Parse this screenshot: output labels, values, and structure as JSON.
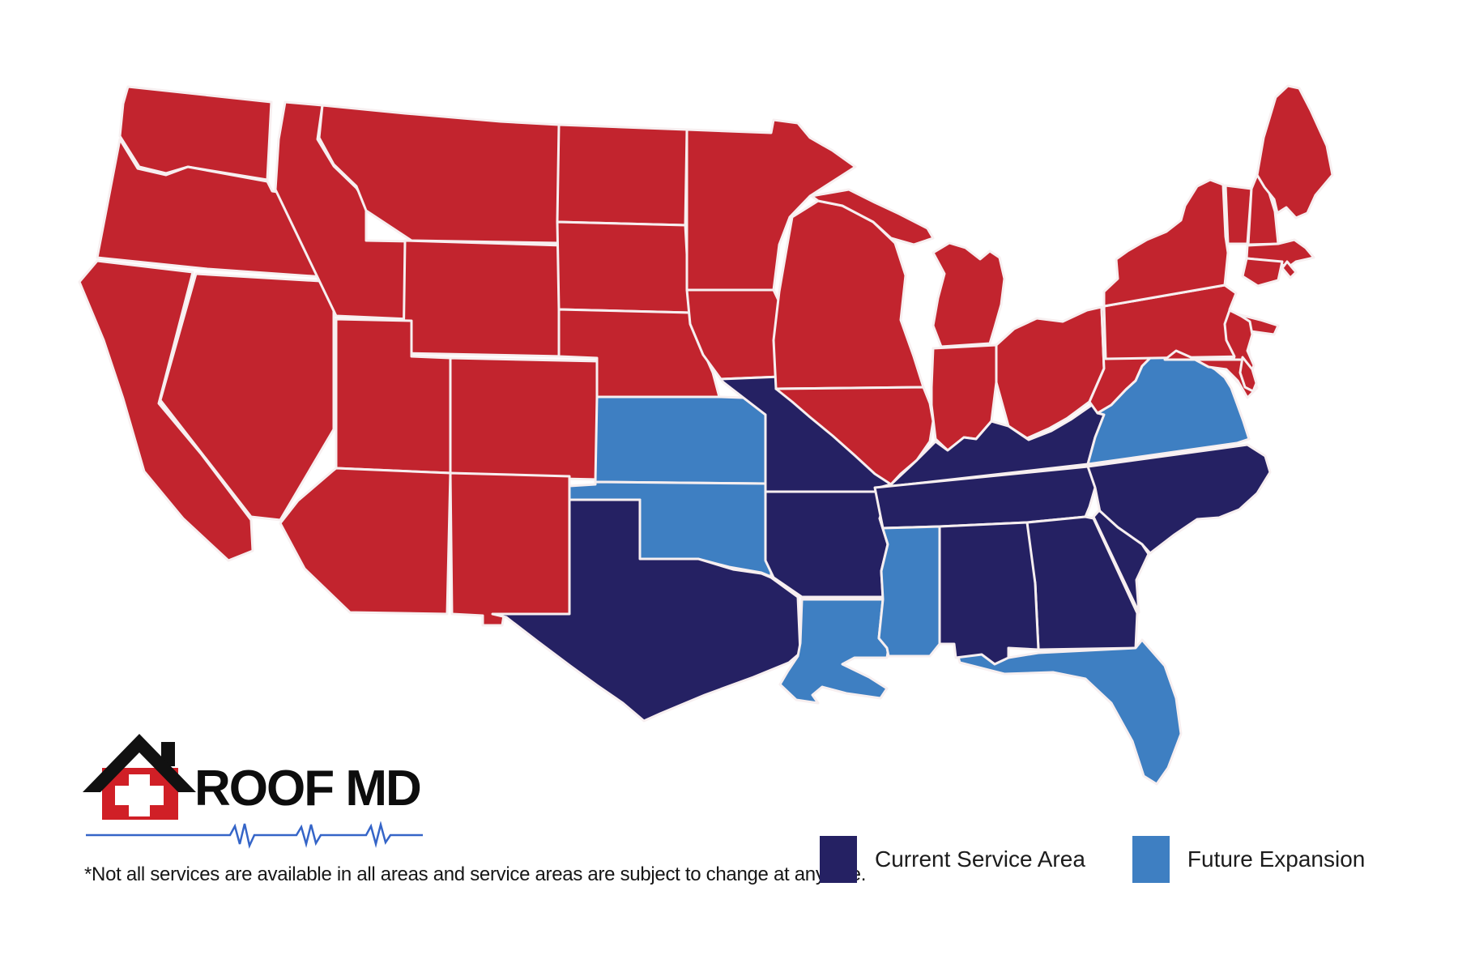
{
  "title": "ROOF MD service area map of the United States",
  "logo": {
    "brand": "ROOF MD"
  },
  "disclaimer": "*Not all services are available in all areas and service areas are subject to change at anytime.",
  "legend": {
    "items": [
      {
        "key": "current",
        "label": "Current Service Area",
        "color": "#252163"
      },
      {
        "key": "future",
        "label": "Future Expansion",
        "color": "#3e7fc2"
      }
    ]
  },
  "map": {
    "colors": {
      "not_serviced": "#c2242e",
      "current": "#252163",
      "future": "#3e7fc2",
      "border": "#f7eff0",
      "background": "#ffffff",
      "ekg_line": "#3565c8",
      "logo_roof": "#111111",
      "logo_house": "#d01f26"
    },
    "status_by_state": {
      "WA": "not_serviced",
      "OR": "not_serviced",
      "CA": "not_serviced",
      "NV": "not_serviced",
      "ID": "not_serviced",
      "MT": "not_serviced",
      "WY": "not_serviced",
      "UT": "not_serviced",
      "CO": "not_serviced",
      "AZ": "not_serviced",
      "NM": "not_serviced",
      "ND": "not_serviced",
      "SD": "not_serviced",
      "NE": "not_serviced",
      "MN": "not_serviced",
      "IA": "not_serviced",
      "WI": "not_serviced",
      "IL": "not_serviced",
      "MI": "not_serviced",
      "IN": "not_serviced",
      "OH": "not_serviced",
      "WV": "not_serviced",
      "PA": "not_serviced",
      "NY": "not_serviced",
      "NJ": "not_serviced",
      "MD": "not_serviced",
      "DE": "not_serviced",
      "VT": "not_serviced",
      "NH": "not_serviced",
      "ME": "not_serviced",
      "MA": "not_serviced",
      "RI": "not_serviced",
      "CT": "not_serviced",
      "TX": "current",
      "MO": "current",
      "AR": "current",
      "KY": "current",
      "TN": "current",
      "AL": "current",
      "GA": "current",
      "SC": "current",
      "NC": "current",
      "KS": "future",
      "OK": "future",
      "LA": "future",
      "MS": "future",
      "FL": "future",
      "VA": "future"
    }
  }
}
